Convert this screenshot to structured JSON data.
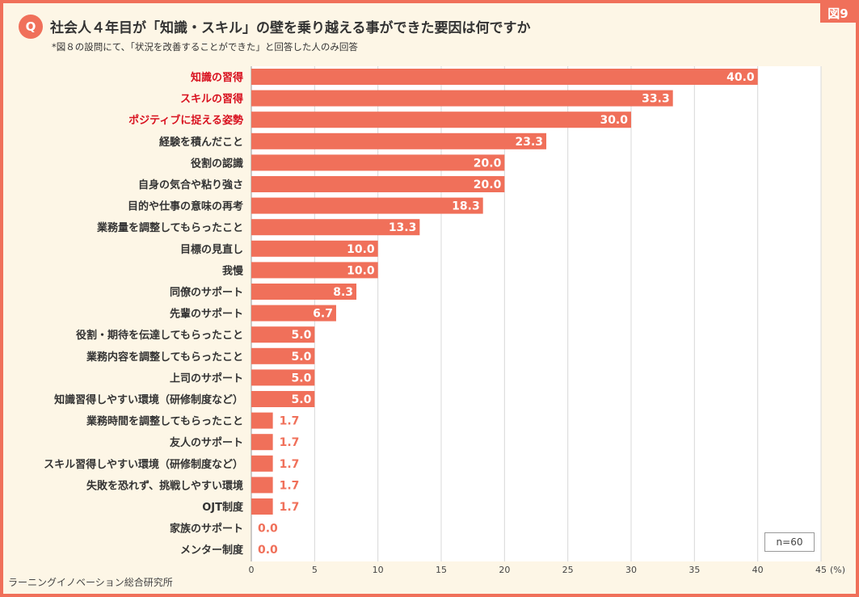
{
  "figure_badge": "図9",
  "question_mark": "Q",
  "title": "社会人４年目が「知識・スキル」の壁を乗り越える事ができた要因は何ですか",
  "subtitle": "*図８の設問にて、「状況を改善することができた」と回答した人のみ回答",
  "source": "ラーニングイノベーション総合研究所",
  "sample_size": "n=60",
  "colors": {
    "bar": "#f0705a",
    "highlight_label": "#d8101e",
    "normal_label": "#333333",
    "grid": "#d8d8d8",
    "background": "#fdf6e6"
  },
  "chart_data": {
    "type": "bar",
    "orientation": "horizontal",
    "categories": [
      "知識の習得",
      "スキルの習得",
      "ポジティブに捉える姿勢",
      "経験を積んだこと",
      "役割の認識",
      "自身の気合や粘り強さ",
      "目的や仕事の意味の再考",
      "業務量を調整してもらったこと",
      "目標の見直し",
      "我慢",
      "同僚のサポート",
      "先輩のサポート",
      "役割・期待を伝達してもらったこと",
      "業務内容を調整してもらったこと",
      "上司のサポート",
      "知識習得しやすい環境（研修制度など）",
      "業務時間を調整してもらったこと",
      "友人のサポート",
      "スキル習得しやすい環境（研修制度など）",
      "失敗を恐れず、挑戦しやすい環境",
      "OJT制度",
      "家族のサポート",
      "メンター制度"
    ],
    "values": [
      40.0,
      33.3,
      30.0,
      23.3,
      20.0,
      20.0,
      18.3,
      13.3,
      10.0,
      10.0,
      8.3,
      6.7,
      5.0,
      5.0,
      5.0,
      5.0,
      1.7,
      1.7,
      1.7,
      1.7,
      1.7,
      0.0,
      0.0
    ],
    "value_labels": [
      "40.0",
      "33.3",
      "30.0",
      "23.3",
      "20.0",
      "20.0",
      "18.3",
      "13.3",
      "10.0",
      "10.0",
      "8.3",
      "6.7",
      "5.0",
      "5.0",
      "5.0",
      "5.0",
      "1.7",
      "1.7",
      "1.7",
      "1.7",
      "1.7",
      "0.0",
      "0.0"
    ],
    "highlighted_categories": [
      0,
      1,
      2
    ],
    "xlim": [
      0,
      45
    ],
    "xticks": [
      "0",
      "5",
      "10",
      "15",
      "20",
      "25",
      "30",
      "35",
      "40",
      "45"
    ],
    "x_unit": "(%)",
    "grid": true
  }
}
